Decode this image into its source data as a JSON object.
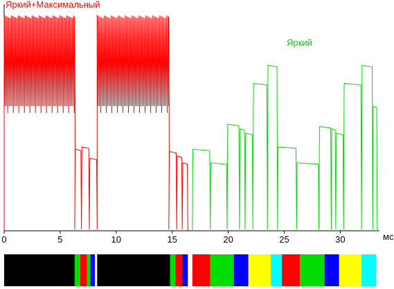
{
  "chart_data": {
    "type": "line",
    "title": "",
    "xlabel": "мс",
    "ylabel": "",
    "xlim": [
      0,
      33.5
    ],
    "ylim": [
      0,
      100
    ],
    "grid": false,
    "x_ticks": [
      0,
      5,
      10,
      15,
      20,
      25,
      30
    ],
    "series": [
      {
        "name": "Яркий+Максимальный",
        "color": "#ff0000",
        "segments": [
          {
            "t0": 0.0,
            "t1": 6.3,
            "mode": "bright",
            "hi": 95,
            "lo": 55
          },
          {
            "t0": 6.3,
            "t1": 6.9,
            "mode": "flat",
            "level": 36
          },
          {
            "t0": 6.9,
            "t1": 7.6,
            "mode": "flat",
            "level": 37
          },
          {
            "t0": 7.6,
            "t1": 8.3,
            "mode": "flat",
            "level": 32
          },
          {
            "t0": 8.3,
            "t1": 14.7,
            "mode": "bright",
            "hi": 95,
            "lo": 55
          },
          {
            "t0": 14.7,
            "t1": 15.4,
            "mode": "flat",
            "level": 35
          },
          {
            "t0": 15.4,
            "t1": 15.9,
            "mode": "flat",
            "level": 33
          },
          {
            "t0": 15.9,
            "t1": 16.4,
            "mode": "flat",
            "level": 30
          }
        ]
      },
      {
        "name": "Яркий",
        "color": "#00dd00",
        "segments": [
          {
            "t0": 16.8,
            "t1": 18.4,
            "mode": "flat",
            "level": 36
          },
          {
            "t0": 18.4,
            "t1": 19.9,
            "mode": "flat",
            "level": 30
          },
          {
            "t0": 19.9,
            "t1": 21.0,
            "mode": "flat",
            "level": 47
          },
          {
            "t0": 21.0,
            "t1": 21.5,
            "mode": "flat",
            "level": 45
          },
          {
            "t0": 21.5,
            "t1": 22.2,
            "mode": "flat",
            "level": 43
          },
          {
            "t0": 22.2,
            "t1": 23.5,
            "mode": "flat",
            "level": 65
          },
          {
            "t0": 23.5,
            "t1": 24.4,
            "mode": "flat",
            "level": 73
          },
          {
            "t0": 24.4,
            "t1": 26.1,
            "mode": "flat",
            "level": 37
          },
          {
            "t0": 26.1,
            "t1": 28.1,
            "mode": "flat",
            "level": 30
          },
          {
            "t0": 28.1,
            "t1": 29.2,
            "mode": "flat",
            "level": 46
          },
          {
            "t0": 29.2,
            "t1": 29.6,
            "mode": "flat",
            "level": 45
          },
          {
            "t0": 29.6,
            "t1": 30.3,
            "mode": "flat",
            "level": 43
          },
          {
            "t0": 30.3,
            "t1": 31.9,
            "mode": "flat",
            "level": 65
          },
          {
            "t0": 31.9,
            "t1": 32.9,
            "mode": "flat",
            "level": 73
          },
          {
            "t0": 32.9,
            "t1": 33.3,
            "mode": "flat",
            "level": 55
          }
        ]
      }
    ],
    "color_strip": [
      {
        "t0": 0.0,
        "t1": 6.3,
        "color": "#000000"
      },
      {
        "t0": 6.3,
        "t1": 6.8,
        "color": "#00dd00"
      },
      {
        "t0": 6.8,
        "t1": 7.4,
        "color": "#ff0000"
      },
      {
        "t0": 7.4,
        "t1": 7.7,
        "color": "#00dd00"
      },
      {
        "t0": 7.7,
        "t1": 8.1,
        "color": "#0000ff"
      },
      {
        "t0": 8.3,
        "t1": 14.8,
        "color": "#000000"
      },
      {
        "t0": 14.8,
        "t1": 15.3,
        "color": "#00dd00"
      },
      {
        "t0": 15.3,
        "t1": 15.9,
        "color": "#ff0000"
      },
      {
        "t0": 15.9,
        "t1": 16.4,
        "color": "#0000ff"
      },
      {
        "t0": 16.8,
        "t1": 18.4,
        "color": "#ff0000"
      },
      {
        "t0": 18.4,
        "t1": 20.5,
        "color": "#00dd00"
      },
      {
        "t0": 20.5,
        "t1": 21.8,
        "color": "#0000ff"
      },
      {
        "t0": 21.8,
        "t1": 23.8,
        "color": "#ffff00"
      },
      {
        "t0": 23.8,
        "t1": 24.8,
        "color": "#00ffff"
      },
      {
        "t0": 24.8,
        "t1": 26.4,
        "color": "#ff0000"
      },
      {
        "t0": 26.4,
        "t1": 28.6,
        "color": "#00dd00"
      },
      {
        "t0": 28.6,
        "t1": 29.9,
        "color": "#0000ff"
      },
      {
        "t0": 29.9,
        "t1": 31.9,
        "color": "#ffff00"
      },
      {
        "t0": 31.9,
        "t1": 33.2,
        "color": "#00ffff"
      }
    ]
  }
}
